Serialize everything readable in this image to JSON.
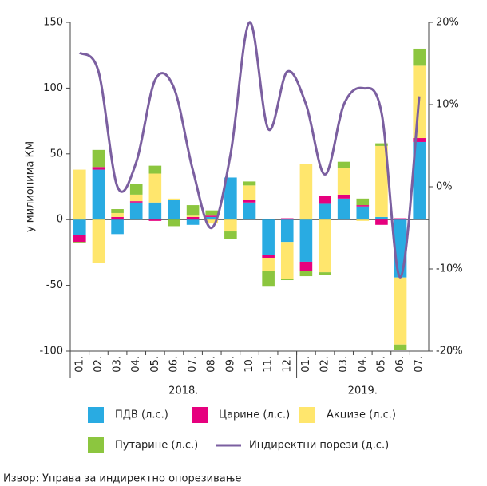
{
  "chart_data": {
    "type": "bar",
    "y_label": "у милионима КМ",
    "categories": [
      "01.",
      "02.",
      "03.",
      "04.",
      "05.",
      "06.",
      "07.",
      "08.",
      "09.",
      "10.",
      "11.",
      "12.",
      "01.",
      "02.",
      "03.",
      "04.",
      "05.",
      "06.",
      "07."
    ],
    "groups": [
      {
        "label": "2018.",
        "start": 0,
        "end": 11
      },
      {
        "label": "2019.",
        "start": 12,
        "end": 18
      }
    ],
    "series": [
      {
        "name": "ПДВ (л.с.)",
        "color": "#29abe2",
        "values": [
          -12,
          38,
          -11,
          13,
          13,
          15,
          -4,
          2,
          32,
          13,
          -27,
          -17,
          -32,
          12,
          16,
          10,
          2,
          -44,
          59
        ]
      },
      {
        "name": "Царине (л.с.)",
        "color": "#e6007e",
        "values": [
          -5,
          2,
          2,
          1,
          -1,
          0,
          2,
          1,
          0,
          2,
          -2,
          1,
          -7,
          6,
          3,
          1,
          -4,
          1,
          3
        ]
      },
      {
        "name": "Акцизе (л.с.)",
        "color": "#ffe66d",
        "values": [
          38,
          -33,
          3,
          5,
          22,
          1,
          1,
          -3,
          -9,
          11,
          -10,
          -28,
          42,
          -40,
          20,
          -1,
          54,
          -51,
          55
        ]
      },
      {
        "name": "Путарине  (л.с.)",
        "color": "#8cc63f",
        "values": [
          -1,
          13,
          3,
          8,
          6,
          -5,
          8,
          4,
          -6,
          3,
          -12,
          -1,
          -4,
          -2,
          5,
          5,
          2,
          -4,
          13
        ]
      },
      {
        "name": "Индиректни порези (д.с.)",
        "color": "#7b5fa0",
        "type": "line",
        "axis": "y2",
        "values": [
          16.3,
          14,
          0,
          3,
          13,
          12,
          2,
          -5,
          4,
          20,
          7,
          14,
          10,
          1.5,
          10,
          12,
          9,
          -11,
          11
        ]
      }
    ],
    "ylim": [
      -100,
      150
    ],
    "yticks": [
      -100,
      -50,
      0,
      50,
      100,
      150
    ],
    "y2lim": [
      -20,
      20
    ],
    "y2ticks": [
      {
        "value": -20,
        "label": "-20%"
      },
      {
        "value": -10,
        "label": "-10%"
      },
      {
        "value": 0,
        "label": "0%"
      },
      {
        "value": 10,
        "label": "10%"
      },
      {
        "value": 20,
        "label": "20%"
      }
    ],
    "source": "Извор: Управа за индиректно опорезивање"
  }
}
